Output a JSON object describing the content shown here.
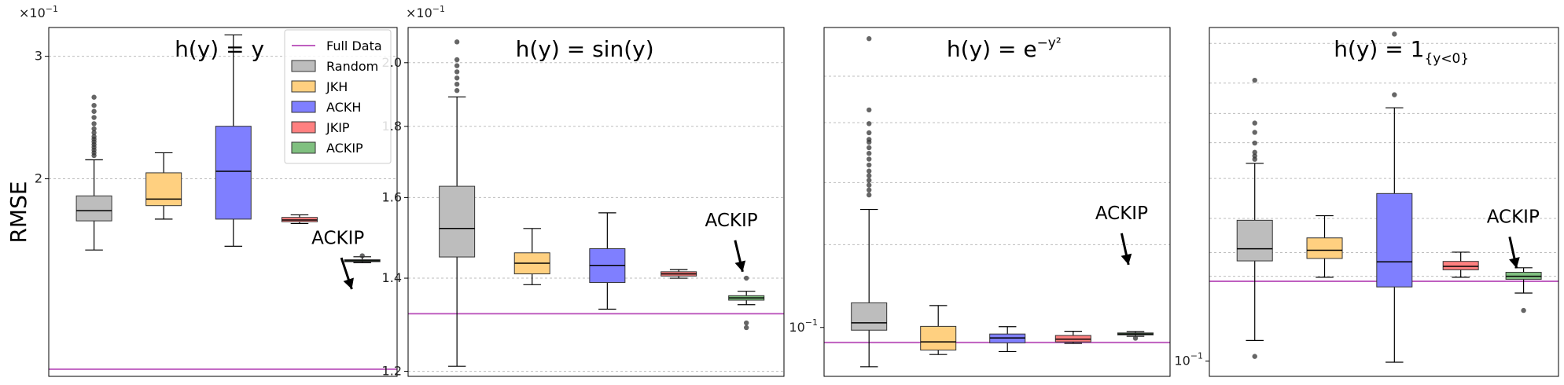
{
  "ylabel": "RMSE",
  "legend": {
    "position": "upper-right of panel 1",
    "items": [
      {
        "label": "Full Data",
        "kind": "line",
        "color": "#bf5fc0"
      },
      {
        "label": "Random",
        "kind": "box",
        "color": "#a9a9a9"
      },
      {
        "label": "JKH",
        "kind": "box",
        "color": "#ffb732"
      },
      {
        "label": "ACKH",
        "kind": "box",
        "color": "#0000ff"
      },
      {
        "label": "JKIP",
        "kind": "box",
        "color": "#ff2a2a"
      },
      {
        "label": "ACKIP",
        "kind": "box",
        "color": "#1f9a1f"
      }
    ]
  },
  "chart_data": [
    {
      "type": "box",
      "title": "h(y) = y",
      "ylabel": "RMSE",
      "yscale": "log",
      "ylim": [
        1.04,
        3.3
      ],
      "ticks": [
        {
          "v": 2,
          "label": "2"
        },
        {
          "v": 3,
          "label": "3"
        }
      ],
      "gridlines": [
        2,
        3
      ],
      "multiplier": "×10−1",
      "full_data": 1.065,
      "annotation": "ACKIP",
      "boxes": [
        {
          "name": "Random",
          "whislo": 1.58,
          "q1": 1.74,
          "med": 1.8,
          "q3": 1.89,
          "whishi": 2.13,
          "fliers": [
            2.16,
            2.18,
            2.2,
            2.22,
            2.24,
            2.26,
            2.28,
            2.3,
            2.33,
            2.36,
            2.4,
            2.45,
            2.5,
            2.55,
            2.62
          ]
        },
        {
          "name": "JKH",
          "whislo": 1.75,
          "q1": 1.83,
          "med": 1.87,
          "q3": 2.04,
          "whishi": 2.18,
          "fliers": []
        },
        {
          "name": "ACKH",
          "whislo": 1.6,
          "q1": 1.75,
          "med": 2.05,
          "q3": 2.38,
          "whishi": 3.22,
          "fliers": []
        },
        {
          "name": "JKIP",
          "whislo": 1.725,
          "q1": 1.735,
          "med": 1.745,
          "q3": 1.76,
          "whishi": 1.775,
          "fliers": []
        },
        {
          "name": "ACKIP",
          "whislo": 1.515,
          "q1": 1.52,
          "med": 1.525,
          "q3": 1.53,
          "whishi": 1.545,
          "fliers": [
            1.55
          ]
        }
      ]
    },
    {
      "type": "box",
      "title": "h(y) = sin(y)",
      "yscale": "log",
      "ylim": [
        1.19,
        2.12
      ],
      "ticks": [
        {
          "v": 1.2,
          "label": "1.2"
        },
        {
          "v": 1.4,
          "label": "1.4"
        },
        {
          "v": 1.6,
          "label": "1.6"
        },
        {
          "v": 1.8,
          "label": "1.8"
        },
        {
          "v": 2.0,
          "label": "2.0"
        }
      ],
      "gridlines": [
        1.2,
        1.4,
        1.6,
        1.8,
        2.0
      ],
      "multiplier": "×10−1",
      "full_data": 1.32,
      "annotation": "ACKIP",
      "boxes": [
        {
          "name": "Random",
          "whislo": 1.21,
          "q1": 1.45,
          "med": 1.52,
          "q3": 1.63,
          "whishi": 1.89,
          "fliers": [
            1.91,
            1.93,
            1.95,
            1.97,
            1.99,
            2.01,
            2.07
          ]
        },
        {
          "name": "JKH",
          "whislo": 1.385,
          "q1": 1.41,
          "med": 1.435,
          "q3": 1.46,
          "whishi": 1.52,
          "fliers": []
        },
        {
          "name": "ACKH",
          "whislo": 1.33,
          "q1": 1.39,
          "med": 1.43,
          "q3": 1.47,
          "whishi": 1.56,
          "fliers": []
        },
        {
          "name": "JKIP",
          "whislo": 1.4,
          "q1": 1.405,
          "med": 1.41,
          "q3": 1.415,
          "whishi": 1.42,
          "fliers": []
        },
        {
          "name": "ACKIP",
          "whislo": 1.34,
          "q1": 1.35,
          "med": 1.355,
          "q3": 1.36,
          "whishi": 1.37,
          "fliers": [
            1.4,
            1.3,
            1.29
          ]
        }
      ]
    },
    {
      "type": "box",
      "title": "h(y) = e^{−y²}",
      "yscale": "log",
      "ylim": [
        0.0835,
        0.3022
      ],
      "ticks": [
        {
          "v": 0.1,
          "label": "10−1"
        }
      ],
      "gridlines": [
        0.0946,
        0.1357,
        0.1706,
        0.2128,
        0.2525
      ],
      "full_data": 0.0946,
      "annotation": "ACKIP",
      "boxes": [
        {
          "name": "Random",
          "whislo": 0.0865,
          "q1": 0.099,
          "med": 0.1017,
          "q3": 0.1095,
          "whishi": 0.1545,
          "fliers": [
            0.163,
            0.166,
            0.169,
            0.172,
            0.175,
            0.178,
            0.182,
            0.186,
            0.19,
            0.194,
            0.198,
            0.2,
            0.205,
            0.212,
            0.223,
            0.29
          ]
        },
        {
          "name": "JKH",
          "whislo": 0.0905,
          "q1": 0.092,
          "med": 0.0948,
          "q3": 0.1004,
          "whishi": 0.1084,
          "fliers": []
        },
        {
          "name": "ACKH",
          "whislo": 0.0915,
          "q1": 0.0945,
          "med": 0.0962,
          "q3": 0.0976,
          "whishi": 0.1003,
          "fliers": []
        },
        {
          "name": "JKIP",
          "whislo": 0.0943,
          "q1": 0.0948,
          "med": 0.0958,
          "q3": 0.0971,
          "whishi": 0.0986,
          "fliers": []
        },
        {
          "name": "ACKIP",
          "whislo": 0.0968,
          "q1": 0.0973,
          "med": 0.0976,
          "q3": 0.098,
          "whishi": 0.0985,
          "fliers": [
            0.0961
          ]
        }
      ]
    },
    {
      "type": "box",
      "title": "h(y) = 1_{y<0}",
      "yscale": "log",
      "ylim": [
        0.0974,
        0.1775
      ],
      "ticks": [
        {
          "v": 0.1,
          "label": "10−1"
        }
      ],
      "gridlines": [
        0.1157,
        0.1205,
        0.1278,
        0.1369,
        0.1456,
        0.1531,
        0.1613,
        0.1727
      ],
      "full_data": 0.1147,
      "annotation": "ACKIP",
      "boxes": [
        {
          "name": "Random",
          "whislo": 0.1036,
          "q1": 0.1188,
          "med": 0.1213,
          "q3": 0.1274,
          "whishi": 0.1405,
          "fliers": [
            0.1008,
            0.1415,
            0.1423,
            0.1432,
            0.1455,
            0.1482,
            0.1506,
            0.1621
          ]
        },
        {
          "name": "JKH",
          "whislo": 0.1155,
          "q1": 0.1193,
          "med": 0.121,
          "q3": 0.1236,
          "whishi": 0.1284,
          "fliers": []
        },
        {
          "name": "ACKH",
          "whislo": 0.0998,
          "q1": 0.1136,
          "med": 0.1186,
          "q3": 0.1334,
          "whishi": 0.1546,
          "fliers": [
            0.1581,
            0.1755
          ]
        },
        {
          "name": "JKIP",
          "whislo": 0.1155,
          "q1": 0.117,
          "med": 0.1177,
          "q3": 0.1187,
          "whishi": 0.1206,
          "fliers": []
        },
        {
          "name": "ACKIP",
          "whislo": 0.1124,
          "q1": 0.1151,
          "med": 0.1157,
          "q3": 0.1165,
          "whishi": 0.1174,
          "fliers": [
            0.1091
          ]
        }
      ]
    }
  ]
}
